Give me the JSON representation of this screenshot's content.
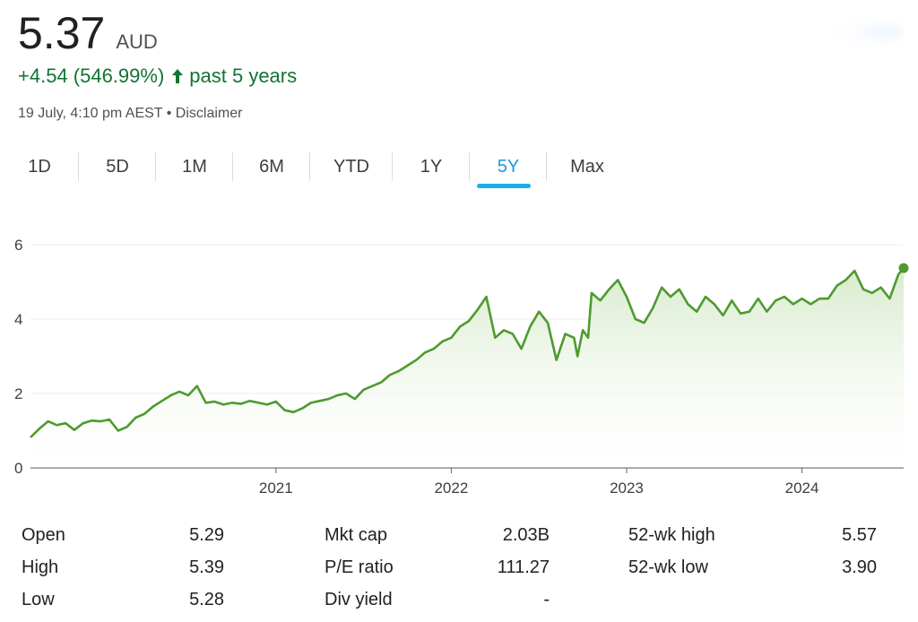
{
  "header": {
    "price": "5.37",
    "currency": "AUD",
    "change": "+4.54 (546.99%)",
    "period": "past 5 years",
    "timestamp": "19 July, 4:10 pm AEST",
    "separator": "•",
    "disclaimer": "Disclaimer",
    "accent_color": "#137333"
  },
  "tabs": [
    {
      "label": "1D",
      "active": false
    },
    {
      "label": "5D",
      "active": false
    },
    {
      "label": "1M",
      "active": false
    },
    {
      "label": "6M",
      "active": false
    },
    {
      "label": "YTD",
      "active": false
    },
    {
      "label": "1Y",
      "active": false
    },
    {
      "label": "5Y",
      "active": true
    },
    {
      "label": "Max",
      "active": false
    }
  ],
  "chart_data": {
    "type": "area",
    "title": "",
    "xlabel": "",
    "ylabel": "",
    "ylim": [
      0,
      6
    ],
    "xlim": [
      2019.6,
      2024.58
    ],
    "y_ticks": [
      "0",
      "2",
      "4",
      "6"
    ],
    "x_ticks": [
      {
        "label": "2021",
        "value": 2021.0
      },
      {
        "label": "2022",
        "value": 2022.0
      },
      {
        "label": "2023",
        "value": 2023.0
      },
      {
        "label": "2024",
        "value": 2024.0
      }
    ],
    "line_color": "#4f9a2f",
    "fill_color": "#e8f3e2",
    "grid": true,
    "series": [
      {
        "x": [
          2019.6,
          2019.65,
          2019.7,
          2019.75,
          2019.8,
          2019.85,
          2019.9,
          2019.95,
          2020.0,
          2020.05,
          2020.1,
          2020.15,
          2020.2,
          2020.25,
          2020.3,
          2020.35,
          2020.4,
          2020.45,
          2020.5,
          2020.55,
          2020.6,
          2020.65,
          2020.7,
          2020.75,
          2020.8,
          2020.85,
          2020.9,
          2020.95,
          2021.0,
          2021.05,
          2021.1,
          2021.15,
          2021.2,
          2021.25,
          2021.3,
          2021.35,
          2021.4,
          2021.45,
          2021.5,
          2021.55,
          2021.6,
          2021.65,
          2021.7,
          2021.75,
          2021.8,
          2021.85,
          2021.9,
          2021.95,
          2022.0,
          2022.05,
          2022.1,
          2022.15,
          2022.2,
          2022.25,
          2022.3,
          2022.35,
          2022.4,
          2022.45,
          2022.5,
          2022.55,
          2022.6,
          2022.65,
          2022.7,
          2022.72,
          2022.75,
          2022.78,
          2022.8,
          2022.85,
          2022.9,
          2022.95,
          2023.0,
          2023.05,
          2023.1,
          2023.15,
          2023.2,
          2023.25,
          2023.3,
          2023.35,
          2023.4,
          2023.45,
          2023.5,
          2023.55,
          2023.6,
          2023.65,
          2023.7,
          2023.75,
          2023.8,
          2023.85,
          2023.9,
          2023.95,
          2024.0,
          2024.05,
          2024.1,
          2024.15,
          2024.2,
          2024.25,
          2024.3,
          2024.35,
          2024.4,
          2024.45,
          2024.5,
          2024.55,
          2024.58
        ],
        "y": [
          0.82,
          1.05,
          1.25,
          1.15,
          1.2,
          1.02,
          1.2,
          1.27,
          1.25,
          1.3,
          1.0,
          1.1,
          1.35,
          1.45,
          1.65,
          1.8,
          1.95,
          2.05,
          1.95,
          2.2,
          1.75,
          1.78,
          1.7,
          1.75,
          1.72,
          1.8,
          1.75,
          1.7,
          1.78,
          1.55,
          1.5,
          1.6,
          1.75,
          1.8,
          1.85,
          1.95,
          2.0,
          1.85,
          2.1,
          2.2,
          2.3,
          2.5,
          2.6,
          2.75,
          2.9,
          3.1,
          3.2,
          3.4,
          3.5,
          3.8,
          3.95,
          4.25,
          4.6,
          3.5,
          3.7,
          3.6,
          3.2,
          3.8,
          4.2,
          3.9,
          2.9,
          3.6,
          3.5,
          3.0,
          3.7,
          3.5,
          4.7,
          4.5,
          4.8,
          5.05,
          4.6,
          4.0,
          3.9,
          4.3,
          4.85,
          4.6,
          4.8,
          4.4,
          4.2,
          4.6,
          4.4,
          4.1,
          4.5,
          4.15,
          4.2,
          4.55,
          4.2,
          4.5,
          4.6,
          4.4,
          4.55,
          4.4,
          4.55,
          4.55,
          4.9,
          5.05,
          5.3,
          4.8,
          4.7,
          4.85,
          4.55,
          5.2,
          5.37
        ]
      }
    ]
  },
  "stats": [
    [
      {
        "label": "Open",
        "value": "5.29"
      },
      {
        "label": "Mkt cap",
        "value": "2.03B"
      },
      {
        "label": "52-wk high",
        "value": "5.57"
      }
    ],
    [
      {
        "label": "High",
        "value": "5.39"
      },
      {
        "label": "P/E ratio",
        "value": "111.27"
      },
      {
        "label": "52-wk low",
        "value": "3.90"
      }
    ],
    [
      {
        "label": "Low",
        "value": "5.28"
      },
      {
        "label": "Div yield",
        "value": "-"
      },
      {
        "label": "",
        "value": ""
      }
    ]
  ]
}
